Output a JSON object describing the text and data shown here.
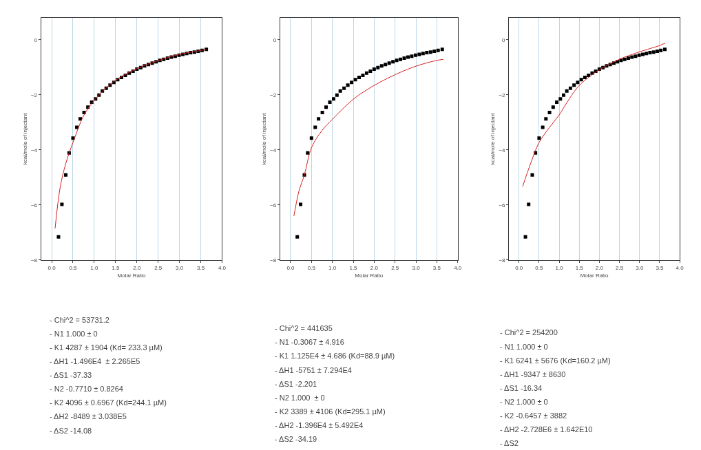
{
  "chart_data": [
    {
      "type": "scatter",
      "xlabel": "Molar Ratio",
      "ylabel": "kcal/mole of injectant",
      "xlim": [
        -0.25,
        4.0
      ],
      "ylim": [
        -8,
        0.8
      ],
      "xticks": [
        {
          "value": 0,
          "label": "0.0"
        },
        {
          "value": 0.5,
          "label": "0.5"
        },
        {
          "value": 1,
          "label": "1.0"
        },
        {
          "value": 1.5,
          "label": "1.5"
        },
        {
          "value": 2,
          "label": "2.0"
        },
        {
          "value": 2.5,
          "label": "2.5"
        },
        {
          "value": 3,
          "label": "3.0"
        },
        {
          "value": 3.5,
          "label": "3.5"
        },
        {
          "value": 4,
          "label": "4.0"
        }
      ],
      "yticks": [
        0,
        -2,
        -4,
        -6,
        -8
      ],
      "grid": "x",
      "series": [
        {
          "marker": "square",
          "color": "#000000",
          "x": [
            0.16,
            0.24,
            0.33,
            0.41,
            0.5,
            0.59,
            0.67,
            0.76,
            0.85,
            0.94,
            1.03,
            1.11,
            1.19,
            1.28,
            1.37,
            1.46,
            1.55,
            1.64,
            1.73,
            1.82,
            1.91,
            2.0,
            2.09,
            2.18,
            2.27,
            2.36,
            2.45,
            2.54,
            2.63,
            2.72,
            2.81,
            2.9,
            2.99,
            3.08,
            3.17,
            3.26,
            3.35,
            3.44,
            3.53,
            3.63
          ],
          "values": [
            -7.16,
            -5.98,
            -4.91,
            -4.11,
            -3.57,
            -3.18,
            -2.87,
            -2.64,
            -2.45,
            -2.27,
            -2.15,
            -2.01,
            -1.86,
            -1.76,
            -1.65,
            -1.55,
            -1.45,
            -1.37,
            -1.29,
            -1.21,
            -1.14,
            -1.07,
            -1.01,
            -0.95,
            -0.9,
            -0.85,
            -0.8,
            -0.75,
            -0.71,
            -0.67,
            -0.63,
            -0.6,
            -0.56,
            -0.53,
            -0.5,
            -0.47,
            -0.45,
            -0.42,
            -0.39,
            -0.35
          ]
        },
        {
          "type": "line",
          "color": "#d62020",
          "x": [
            0.08,
            0.2,
            0.33,
            0.5,
            0.76,
            1.0,
            1.19,
            1.5,
            2.0,
            2.5,
            3.0,
            3.5,
            3.63
          ],
          "values": [
            -6.85,
            -5.35,
            -4.5,
            -3.73,
            -2.73,
            -2.2,
            -1.88,
            -1.47,
            -1.05,
            -0.76,
            -0.53,
            -0.39,
            -0.35
          ]
        }
      ],
      "annotations": [
        "- Chi^2 = 53731.2",
        "- N1 1.000 ± 0",
        "- K1 4287 ± 1904 (Kd= 233.3 µM)",
        "- ΔH1 -1.496E4  ± 2.265E5",
        "- ΔS1 -37.33",
        "- N2 -0.7710 ± 0.8264",
        "- K2 4096 ± 0.6967 (Kd=244.1 µM)",
        "- ΔH2 -8489 ± 3.038E5",
        "- ΔS2 -14.08"
      ]
    },
    {
      "type": "scatter",
      "xlabel": "Molar Ratio",
      "ylabel": "kcal/mole of injectant",
      "xlim": [
        -0.25,
        4.0
      ],
      "ylim": [
        -8,
        0.8
      ],
      "xticks": [
        {
          "value": 0,
          "label": "0.0"
        },
        {
          "value": 0.5,
          "label": "0.5"
        },
        {
          "value": 1,
          "label": "1.0"
        },
        {
          "value": 1.5,
          "label": "1.5"
        },
        {
          "value": 2,
          "label": "2.0"
        },
        {
          "value": 2.5,
          "label": "2.5"
        },
        {
          "value": 3,
          "label": "3.0"
        },
        {
          "value": 3.5,
          "label": "3.5"
        },
        {
          "value": 4,
          "label": "4.0"
        }
      ],
      "yticks": [
        0,
        -2,
        -4,
        -6,
        -8
      ],
      "grid": "x",
      "series": [
        {
          "marker": "square",
          "color": "#000000",
          "x": [
            0.16,
            0.24,
            0.33,
            0.41,
            0.5,
            0.59,
            0.67,
            0.76,
            0.85,
            0.94,
            1.03,
            1.11,
            1.19,
            1.28,
            1.37,
            1.46,
            1.55,
            1.64,
            1.73,
            1.82,
            1.91,
            2.0,
            2.09,
            2.18,
            2.27,
            2.36,
            2.45,
            2.54,
            2.63,
            2.72,
            2.81,
            2.9,
            2.99,
            3.08,
            3.17,
            3.26,
            3.35,
            3.44,
            3.53,
            3.63
          ],
          "values": [
            -7.16,
            -5.98,
            -4.91,
            -4.11,
            -3.57,
            -3.18,
            -2.87,
            -2.64,
            -2.45,
            -2.27,
            -2.15,
            -2.01,
            -1.86,
            -1.76,
            -1.65,
            -1.55,
            -1.45,
            -1.37,
            -1.29,
            -1.21,
            -1.14,
            -1.07,
            -1.01,
            -0.95,
            -0.9,
            -0.85,
            -0.8,
            -0.75,
            -0.71,
            -0.67,
            -0.63,
            -0.6,
            -0.56,
            -0.53,
            -0.5,
            -0.47,
            -0.45,
            -0.42,
            -0.39,
            -0.35
          ]
        },
        {
          "type": "line",
          "color": "#d62020",
          "x": [
            0.08,
            0.2,
            0.33,
            0.5,
            0.75,
            1.0,
            1.5,
            2.0,
            2.5,
            3.0,
            3.5,
            3.66
          ],
          "values": [
            -6.4,
            -5.5,
            -4.91,
            -3.92,
            -3.3,
            -2.89,
            -2.16,
            -1.66,
            -1.27,
            -0.96,
            -0.75,
            -0.71
          ]
        }
      ],
      "annotations": [
        "- Chi^2 = 441635",
        "- N1 -0.3067 ± 4.916",
        "- K1 1.125E4 ± 4.686 (Kd=88.9 µM)",
        "- ΔH1 -5751 ± 7.294E4",
        "- ΔS1 -2.201",
        "- N2 1.000  ± 0",
        "- K2 3389 ± 4106 (Kd=295.1 µM)",
        "- ΔH2 -1.396E4 ± 5.492E4",
        "- ΔS2 -34.19"
      ]
    },
    {
      "type": "scatter",
      "xlabel": "Molar Ratio",
      "ylabel": "kcal/mole of injectant",
      "xlim": [
        -0.25,
        4.0
      ],
      "ylim": [
        -8,
        0.8
      ],
      "xticks": [
        {
          "value": 0,
          "label": "0.0"
        },
        {
          "value": 0.5,
          "label": "0.5"
        },
        {
          "value": 1,
          "label": "1.0"
        },
        {
          "value": 1.5,
          "label": "1.5"
        },
        {
          "value": 2,
          "label": "2.0"
        },
        {
          "value": 2.5,
          "label": "2.5"
        },
        {
          "value": 3,
          "label": "3.0"
        },
        {
          "value": 3.5,
          "label": "3.5"
        },
        {
          "value": 4,
          "label": "4.0"
        }
      ],
      "yticks": [
        0,
        -2,
        -4,
        -6,
        -8
      ],
      "grid": "x",
      "series": [
        {
          "marker": "square",
          "color": "#000000",
          "x": [
            0.16,
            0.24,
            0.33,
            0.41,
            0.5,
            0.59,
            0.67,
            0.76,
            0.85,
            0.94,
            1.03,
            1.11,
            1.19,
            1.28,
            1.37,
            1.46,
            1.55,
            1.64,
            1.73,
            1.82,
            1.91,
            2.0,
            2.09,
            2.18,
            2.27,
            2.36,
            2.45,
            2.54,
            2.63,
            2.72,
            2.81,
            2.9,
            2.99,
            3.08,
            3.17,
            3.26,
            3.35,
            3.44,
            3.53,
            3.63
          ],
          "values": [
            -7.16,
            -5.98,
            -4.91,
            -4.11,
            -3.57,
            -3.18,
            -2.87,
            -2.64,
            -2.45,
            -2.27,
            -2.15,
            -2.01,
            -1.86,
            -1.76,
            -1.65,
            -1.55,
            -1.45,
            -1.37,
            -1.29,
            -1.21,
            -1.14,
            -1.07,
            -1.01,
            -0.95,
            -0.9,
            -0.85,
            -0.8,
            -0.75,
            -0.71,
            -0.67,
            -0.63,
            -0.6,
            -0.56,
            -0.53,
            -0.5,
            -0.47,
            -0.45,
            -0.42,
            -0.39,
            -0.35
          ]
        },
        {
          "type": "line",
          "color": "#d62020",
          "x": [
            0.09,
            0.3,
            0.5,
            0.75,
            1.0,
            1.25,
            1.5,
            2.0,
            2.5,
            3.0,
            3.5,
            3.64
          ],
          "values": [
            -5.33,
            -4.45,
            -3.73,
            -3.2,
            -2.73,
            -2.15,
            -1.66,
            -1.09,
            -0.71,
            -0.44,
            -0.21,
            -0.12
          ]
        }
      ],
      "annotations": [
        "- Chi^2 = 254200",
        "- N1 1.000 ± 0",
        "- K1 6241 ± 5676 (Kd=160.2 µM)",
        "- ΔH1 -9347 ± 8630",
        "- ΔS1 -16.34",
        "- N2 1.000 ± 0",
        "- K2 -0.6457 ± 3882",
        "- ΔH2 -2.728E6 ± 1.642E10",
        "- ΔS2"
      ]
    }
  ]
}
